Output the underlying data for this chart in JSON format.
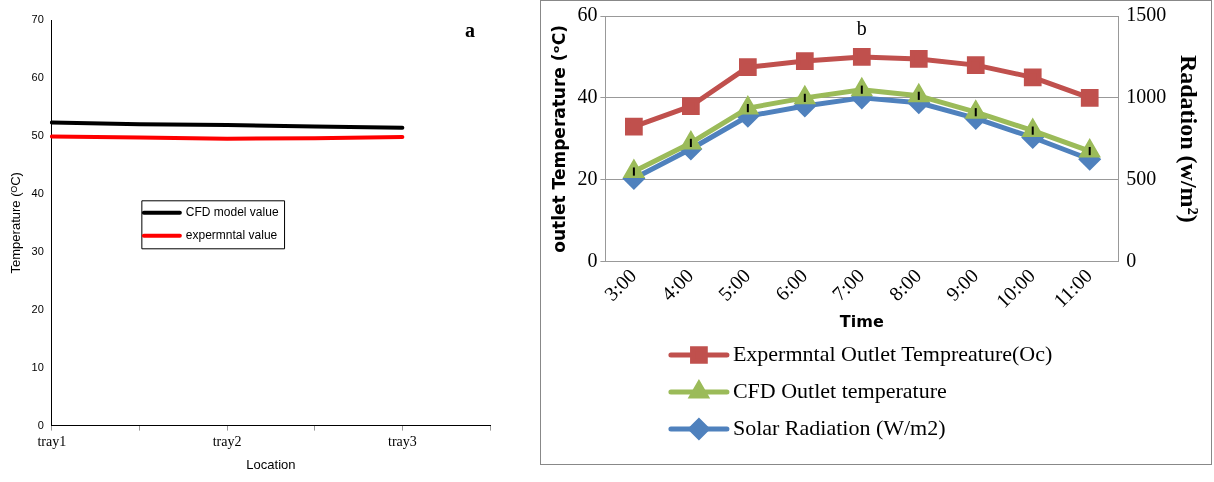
{
  "chart_data": [
    {
      "type": "line",
      "xlabel": "Location",
      "ylabel": "Temperature (ᴼC)",
      "annotations": [
        "a"
      ],
      "categories": [
        "tray1",
        null,
        "tray2",
        null,
        "tray3",
        null
      ],
      "ylim": [
        0,
        70
      ],
      "yticks": [
        0,
        10,
        20,
        30,
        40,
        50,
        60,
        70
      ],
      "grid": false,
      "legend": "center",
      "marker": "none",
      "line_style": "solid",
      "series": [
        {
          "name": "CFD model value",
          "color": "#000000",
          "values": [
            52.3,
            52.0,
            51.9,
            51.6,
            51.4,
            null
          ]
        },
        {
          "name": "expermntal value",
          "color": "#ff0000",
          "values": [
            49.9,
            49.7,
            49.5,
            49.6,
            49.8,
            null
          ]
        }
      ]
    },
    {
      "type": "line",
      "xlabel": "Time",
      "ylabel": "outlet Temperature (ᵒC)",
      "y2label": "Radation (w/m²)",
      "annotations": [
        "b"
      ],
      "categories": [
        "3:00",
        "4:00",
        "5:00",
        "6:00",
        "7:00",
        "8:00",
        "9:00",
        "10:00",
        "11:00"
      ],
      "ylim": [
        0,
        60
      ],
      "yticks": [
        0,
        20,
        40,
        60
      ],
      "y2lim": [
        0,
        1500
      ],
      "y2ticks": [
        0,
        500,
        1000,
        1500
      ],
      "grid": "y",
      "legend": "bottom",
      "line_style": "solid",
      "series": [
        {
          "name": "Expermntal Outlet Tempreature(Oc)",
          "color": "#c0504d",
          "marker": "square",
          "values": [
            33,
            38,
            47.5,
            49,
            50,
            49.5,
            48,
            45,
            40
          ]
        },
        {
          "name": "CFD Outlet temperature",
          "color": "#9bbb59",
          "marker": "triangle",
          "values": [
            22,
            29,
            37.5,
            40,
            42,
            40.5,
            36.5,
            32,
            27
          ],
          "errors": [
            1,
            1,
            1,
            1,
            1,
            1,
            1,
            1,
            1
          ]
        },
        {
          "name": "Solar Radiation (W/m2)",
          "color": "#4f81bd",
          "marker": "diamond",
          "axis": "y2",
          "values": [
            508,
            688,
            888,
            950,
            1000,
            970,
            875,
            758,
            625
          ]
        }
      ]
    }
  ]
}
